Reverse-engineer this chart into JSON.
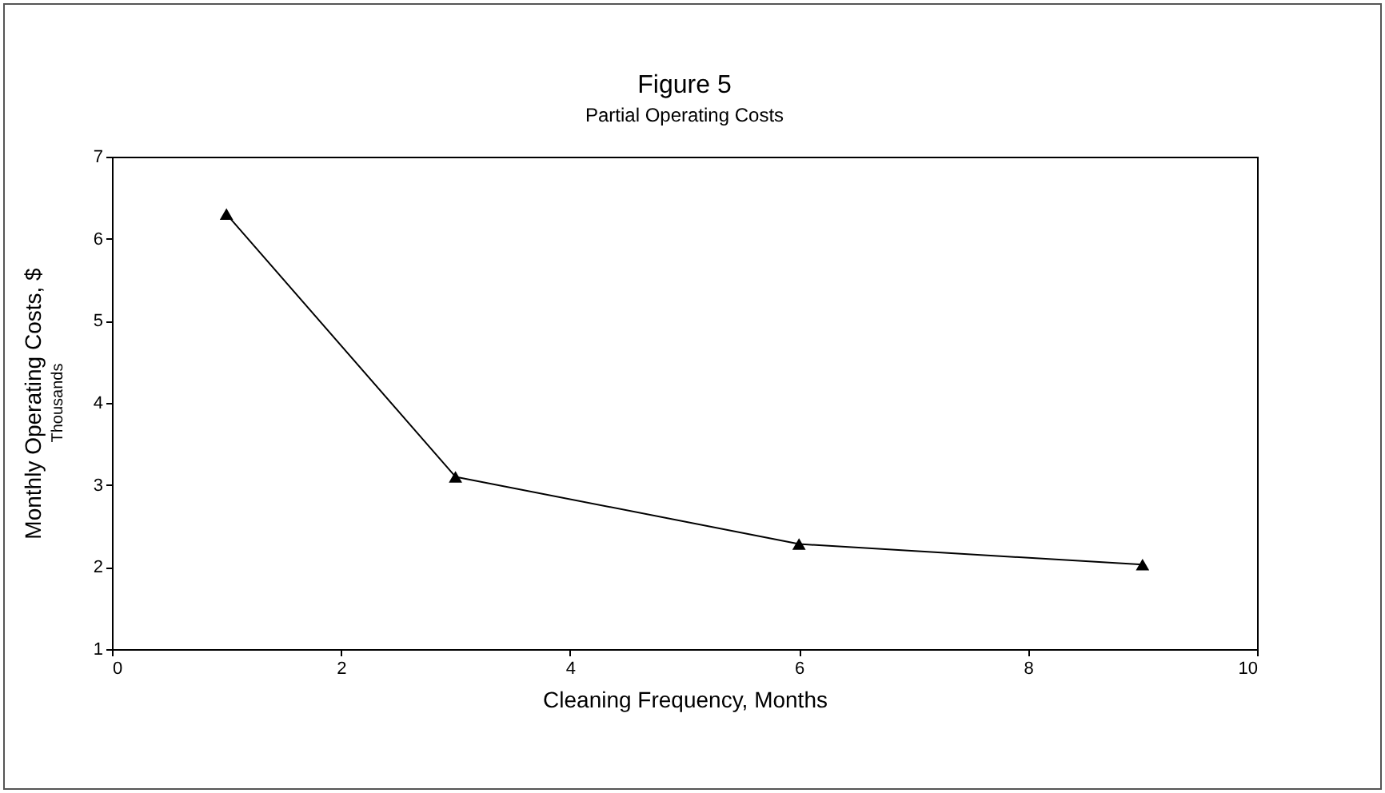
{
  "chart_data": {
    "type": "line",
    "title": "Figure 5",
    "subtitle": "Partial Operating Costs",
    "xlabel": "Cleaning Frequency, Months",
    "ylabel": "Monthly Operating Costs, $",
    "annotations": [
      "Thousands"
    ],
    "x": [
      1,
      3,
      6,
      9
    ],
    "series": [
      {
        "color": "#000000",
        "values": [
          6.3,
          3.1,
          2.28,
          2.03
        ]
      }
    ],
    "xlim": [
      0,
      10
    ],
    "xticks": [
      0,
      2,
      4,
      6,
      8,
      10
    ],
    "ylim": [
      1,
      7
    ],
    "yticks": [
      1,
      2,
      3,
      4,
      5,
      6,
      7
    ],
    "grid": false,
    "marker": "triangle",
    "line_style": "solid"
  }
}
